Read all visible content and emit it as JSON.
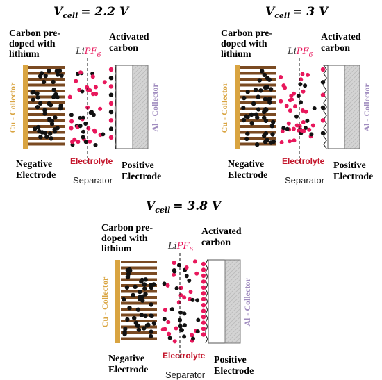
{
  "colors": {
    "cu_collector": "#d9a441",
    "al_collector": "#a08cbf",
    "electrolyte_label": "#c4142a",
    "anion": "#e8185c",
    "cation": "#111111",
    "carbon_layer": "#7a4a22",
    "salt_prefix": "#333333",
    "salt_formula": "#e8185c"
  },
  "panels": [
    {
      "id": "2.2",
      "vcell_label": "V",
      "vcell_sub": "cell",
      "vcell_value": "= 2.2 V",
      "neg_title_lines": [
        "Carbon pre-",
        "doped with",
        "lithium"
      ],
      "pos_title_lines": [
        "Activated",
        "carbon"
      ],
      "salt_prefix": "Li",
      "salt_formula": "PF",
      "salt_sub": "6",
      "cu_label": "Cu - Collector",
      "al_label": "Al - Collector",
      "neg_label_lines": [
        "Negative",
        "Electrode"
      ],
      "electrolyte_label": "Electrolyte",
      "separator_label": "Separator",
      "pos_label_lines": [
        "Positive",
        "Electrode"
      ]
    },
    {
      "id": "3",
      "vcell_label": "V",
      "vcell_sub": "cell",
      "vcell_value": "= 3 V",
      "neg_title_lines": [
        "Carbon pre-",
        "doped with",
        "lithium"
      ],
      "pos_title_lines": [
        "Activated",
        "carbon"
      ],
      "salt_prefix": "Li",
      "salt_formula": "PF",
      "salt_sub": "6",
      "cu_label": "Cu - Collector",
      "al_label": "Al - Collector",
      "neg_label_lines": [
        "Negative",
        "Electrode"
      ],
      "electrolyte_label": "Electrolyte",
      "separator_label": "Separator",
      "pos_label_lines": [
        "Positive",
        "Electrode"
      ]
    },
    {
      "id": "3.8",
      "vcell_label": "V",
      "vcell_sub": "cell",
      "vcell_value": "= 3.8 V",
      "neg_title_lines": [
        "Carbon pre-",
        "doped with",
        "lithium"
      ],
      "pos_title_lines": [
        "Activated",
        "carbon"
      ],
      "salt_prefix": "Li",
      "salt_formula": "PF",
      "salt_sub": "6",
      "cu_label": "Cu - Collector",
      "al_label": "Al - Collector",
      "neg_label_lines": [
        "Negative",
        "Electrode"
      ],
      "electrolyte_label": "Electrolyte",
      "separator_label": "Separator",
      "pos_label_lines": [
        "Positive",
        "Electrode"
      ]
    }
  ]
}
